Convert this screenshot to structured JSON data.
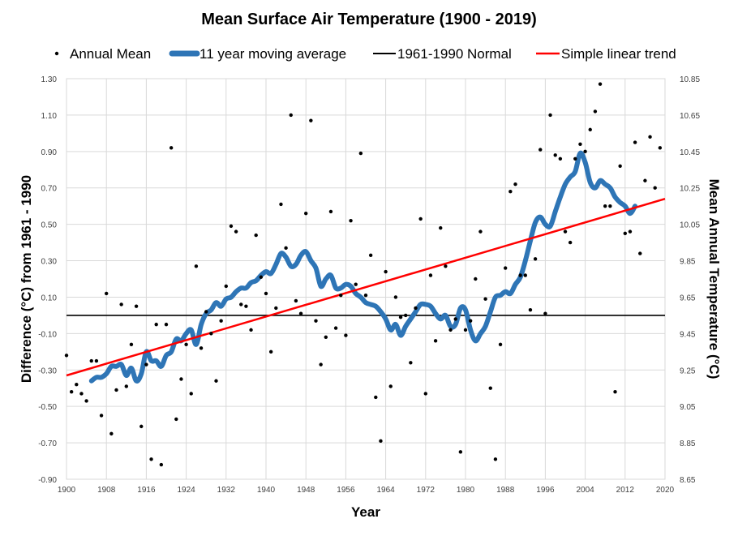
{
  "chart_data": {
    "type": "line",
    "title": "Mean Surface Air Temperature (1900 - 2019)",
    "xlabel": "Year",
    "ylabel_left": "Difference (°C) from 1961 - 1990",
    "ylabel_right": "Mean Annual Temperature  (°C)",
    "xlim": [
      1900,
      2020
    ],
    "ylim_left": [
      -0.9,
      1.3
    ],
    "ylim_right": [
      8.65,
      10.85
    ],
    "x_ticks": [
      "1900",
      "1908",
      "1916",
      "1924",
      "1932",
      "1940",
      "1948",
      "1956",
      "1964",
      "1972",
      "1980",
      "1988",
      "1996",
      "2004",
      "2012",
      "2020"
    ],
    "y_ticks_left": [
      "1.30",
      "1.10",
      "0.90",
      "0.70",
      "0.50",
      "0.30",
      "0.10",
      "-0.10",
      "-0.30",
      "-0.50",
      "-0.70",
      "-0.90"
    ],
    "y_ticks_right": [
      "10.85",
      "10.65",
      "10.45",
      "10.25",
      "10.05",
      "9.85",
      "9.65",
      "9.45",
      "9.25",
      "9.05",
      "8.85",
      "8.65"
    ],
    "legend": [
      "Annual Mean",
      "11 year moving average",
      "1961-1990 Normal",
      "Simple linear trend"
    ],
    "legend_position": "top",
    "series": [
      {
        "name": "Annual Mean",
        "style": "markers",
        "color": "#000000",
        "x": [
          1900,
          1901,
          1902,
          1903,
          1904,
          1905,
          1906,
          1907,
          1908,
          1909,
          1910,
          1911,
          1912,
          1913,
          1914,
          1915,
          1916,
          1917,
          1918,
          1919,
          1920,
          1921,
          1922,
          1923,
          1924,
          1925,
          1926,
          1927,
          1928,
          1929,
          1930,
          1931,
          1932,
          1933,
          1934,
          1935,
          1936,
          1937,
          1938,
          1939,
          1940,
          1941,
          1942,
          1943,
          1944,
          1945,
          1946,
          1947,
          1948,
          1949,
          1950,
          1951,
          1952,
          1953,
          1954,
          1955,
          1956,
          1957,
          1958,
          1959,
          1960,
          1961,
          1962,
          1963,
          1964,
          1965,
          1966,
          1967,
          1968,
          1969,
          1970,
          1971,
          1972,
          1973,
          1974,
          1975,
          1976,
          1977,
          1978,
          1979,
          1980,
          1981,
          1982,
          1983,
          1984,
          1985,
          1986,
          1987,
          1988,
          1989,
          1990,
          1991,
          1992,
          1993,
          1994,
          1995,
          1996,
          1997,
          1998,
          1999,
          2000,
          2001,
          2002,
          2003,
          2004,
          2005,
          2006,
          2007,
          2008,
          2009,
          2010,
          2011,
          2012,
          2013,
          2014,
          2015,
          2016,
          2017,
          2018,
          2019
        ],
        "y": [
          -0.22,
          -0.42,
          -0.38,
          -0.43,
          -0.47,
          -0.25,
          -0.25,
          -0.55,
          0.12,
          -0.65,
          -0.41,
          0.06,
          -0.39,
          -0.16,
          0.05,
          -0.61,
          -0.27,
          -0.79,
          -0.05,
          -0.82,
          -0.05,
          0.92,
          -0.57,
          -0.35,
          -0.16,
          -0.43,
          0.27,
          -0.18,
          0.02,
          -0.1,
          -0.36,
          -0.03,
          0.16,
          0.49,
          0.46,
          0.06,
          0.05,
          -0.08,
          0.44,
          0.21,
          0.12,
          -0.2,
          0.04,
          0.61,
          0.37,
          1.1,
          0.08,
          0.01,
          0.56,
          1.07,
          -0.03,
          -0.27,
          -0.12,
          0.57,
          -0.07,
          0.11,
          -0.11,
          0.52,
          0.17,
          0.89,
          0.11,
          0.33,
          -0.45,
          -0.69,
          0.24,
          -0.39,
          0.1,
          -0.01,
          0.0,
          -0.26,
          0.04,
          0.53,
          -0.43,
          0.22,
          -0.14,
          0.48,
          0.27,
          -0.08,
          -0.02,
          -0.75,
          -0.08,
          -0.03,
          0.2,
          0.46,
          0.09,
          -0.4,
          -0.79,
          -0.16,
          0.26,
          0.68,
          0.72,
          0.22,
          0.22,
          0.03,
          0.31,
          0.91,
          0.01,
          1.1,
          0.88,
          0.86,
          0.46,
          0.4,
          0.86,
          0.94,
          0.9,
          1.02,
          1.12,
          1.27,
          0.6,
          0.6,
          -0.42,
          0.82,
          0.45,
          0.46,
          0.95,
          0.34,
          0.74,
          0.98,
          0.7,
          0.92
        ]
      },
      {
        "name": "11 year moving average",
        "style": "line",
        "color": "#2e75b6",
        "x": [
          1905,
          1906,
          1907,
          1908,
          1909,
          1910,
          1911,
          1912,
          1913,
          1914,
          1915,
          1916,
          1917,
          1918,
          1919,
          1920,
          1921,
          1922,
          1923,
          1924,
          1925,
          1926,
          1927,
          1928,
          1929,
          1930,
          1931,
          1932,
          1933,
          1934,
          1935,
          1936,
          1937,
          1938,
          1939,
          1940,
          1941,
          1942,
          1943,
          1944,
          1945,
          1946,
          1947,
          1948,
          1949,
          1950,
          1951,
          1952,
          1953,
          1954,
          1955,
          1956,
          1957,
          1958,
          1959,
          1960,
          1961,
          1962,
          1963,
          1964,
          1965,
          1966,
          1967,
          1968,
          1969,
          1970,
          1971,
          1972,
          1973,
          1974,
          1975,
          1976,
          1977,
          1978,
          1979,
          1980,
          1981,
          1982,
          1983,
          1984,
          1985,
          1986,
          1987,
          1988,
          1989,
          1990,
          1991,
          1992,
          1993,
          1994,
          1995,
          1996,
          1997,
          1998,
          1999,
          2000,
          2001,
          2002,
          2003,
          2004,
          2005,
          2006,
          2007,
          2008,
          2009,
          2010,
          2011,
          2012,
          2013,
          2014
        ],
        "y": [
          -0.36,
          -0.34,
          -0.34,
          -0.32,
          -0.28,
          -0.28,
          -0.27,
          -0.33,
          -0.29,
          -0.36,
          -0.32,
          -0.2,
          -0.25,
          -0.25,
          -0.28,
          -0.22,
          -0.2,
          -0.13,
          -0.14,
          -0.1,
          -0.08,
          -0.16,
          -0.05,
          0.01,
          0.03,
          0.07,
          0.05,
          0.09,
          0.1,
          0.13,
          0.15,
          0.15,
          0.18,
          0.19,
          0.22,
          0.24,
          0.23,
          0.28,
          0.34,
          0.32,
          0.27,
          0.28,
          0.33,
          0.35,
          0.3,
          0.26,
          0.16,
          0.2,
          0.22,
          0.15,
          0.15,
          0.17,
          0.16,
          0.12,
          0.1,
          0.07,
          0.06,
          0.05,
          0.02,
          -0.02,
          -0.08,
          -0.05,
          -0.11,
          -0.06,
          -0.02,
          0.02,
          0.06,
          0.06,
          0.05,
          0.01,
          -0.02,
          0.0,
          -0.06,
          -0.05,
          0.04,
          0.03,
          -0.08,
          -0.14,
          -0.1,
          -0.06,
          0.02,
          0.1,
          0.11,
          0.13,
          0.12,
          0.17,
          0.21,
          0.3,
          0.41,
          0.51,
          0.54,
          0.5,
          0.49,
          0.57,
          0.65,
          0.72,
          0.76,
          0.79,
          0.89,
          0.84,
          0.73,
          0.7,
          0.74,
          0.72,
          0.7,
          0.65,
          0.62,
          0.6,
          0.56,
          0.6
        ]
      },
      {
        "name": "1961-1990 Normal",
        "style": "line",
        "color": "#000000",
        "x": [
          1900,
          2020
        ],
        "y": [
          0.0,
          0.0
        ]
      },
      {
        "name": "Simple linear trend",
        "style": "line",
        "color": "#ff0000",
        "x": [
          1900,
          2020
        ],
        "y": [
          -0.33,
          0.64
        ]
      }
    ]
  }
}
